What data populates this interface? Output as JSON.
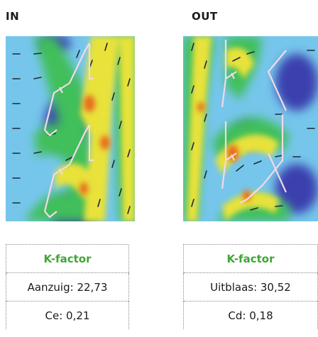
{
  "panels": {
    "in": {
      "title": "IN",
      "table": {
        "header": "K-factor",
        "row1": "Aanzuig: 22,73",
        "row2": "Ce: 0,21"
      }
    },
    "out": {
      "title": "OUT",
      "table": {
        "header": "K-factor",
        "row1": "Uitblaas: 30,52",
        "row2": "Cd: 0,18"
      }
    }
  },
  "colors": {
    "accent": "#3fa535",
    "flow_low": "#3a3fae",
    "flow_base": "#76c6ec",
    "flow_mid": "#3fbf5a",
    "flow_high": "#e8e23a",
    "flow_peak": "#e86a1e",
    "grille_outline": "#f3d9e6"
  }
}
